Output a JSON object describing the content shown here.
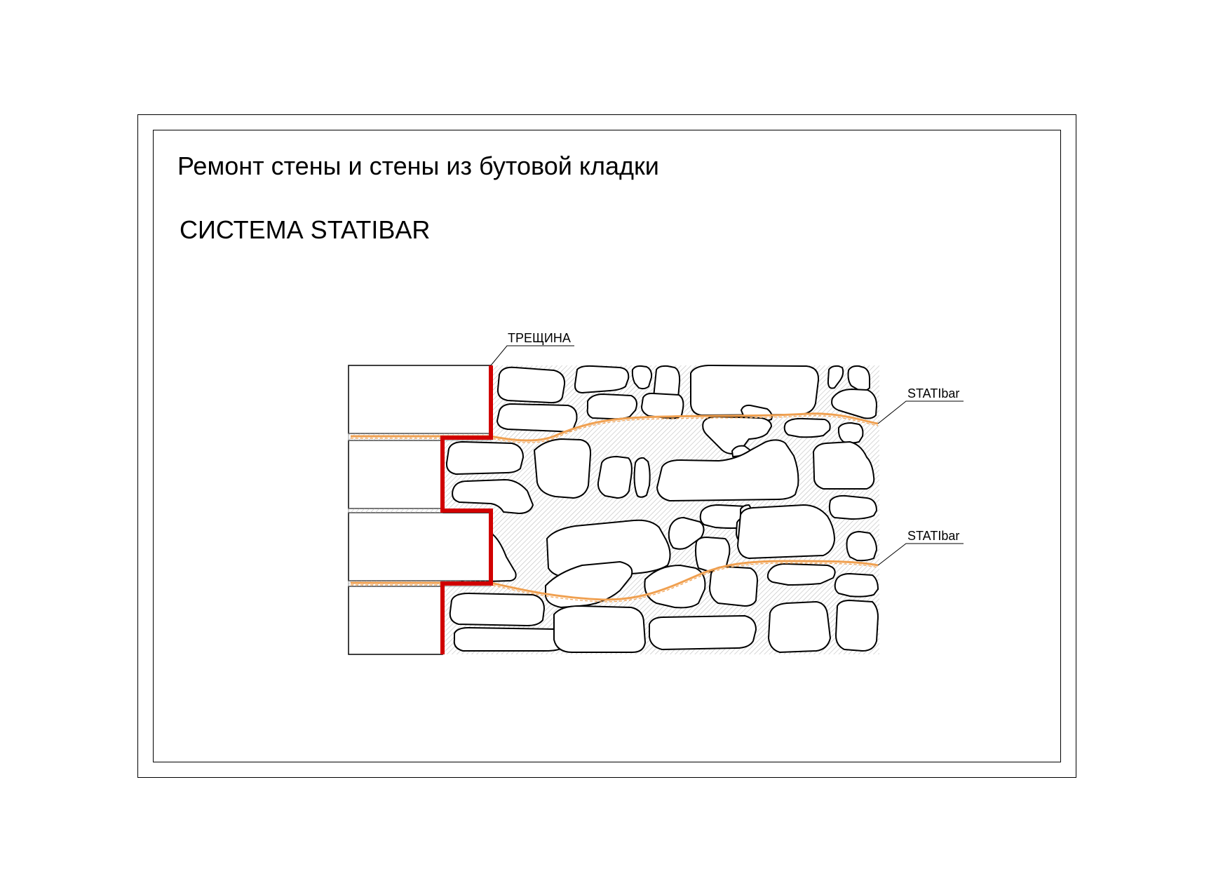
{
  "title": "Ремонт стены и стены из бутовой кладки",
  "subtitle": "СИСТЕМА STATIBAR",
  "labels": {
    "crack": "ТРЕЩИНА",
    "bar_top": "STATIbar",
    "bar_bottom": "STATIbar"
  },
  "colors": {
    "crack": "#d10000",
    "bar": "#f0a050",
    "line": "#000000",
    "mortar_hatch": "#b8b8b8"
  }
}
